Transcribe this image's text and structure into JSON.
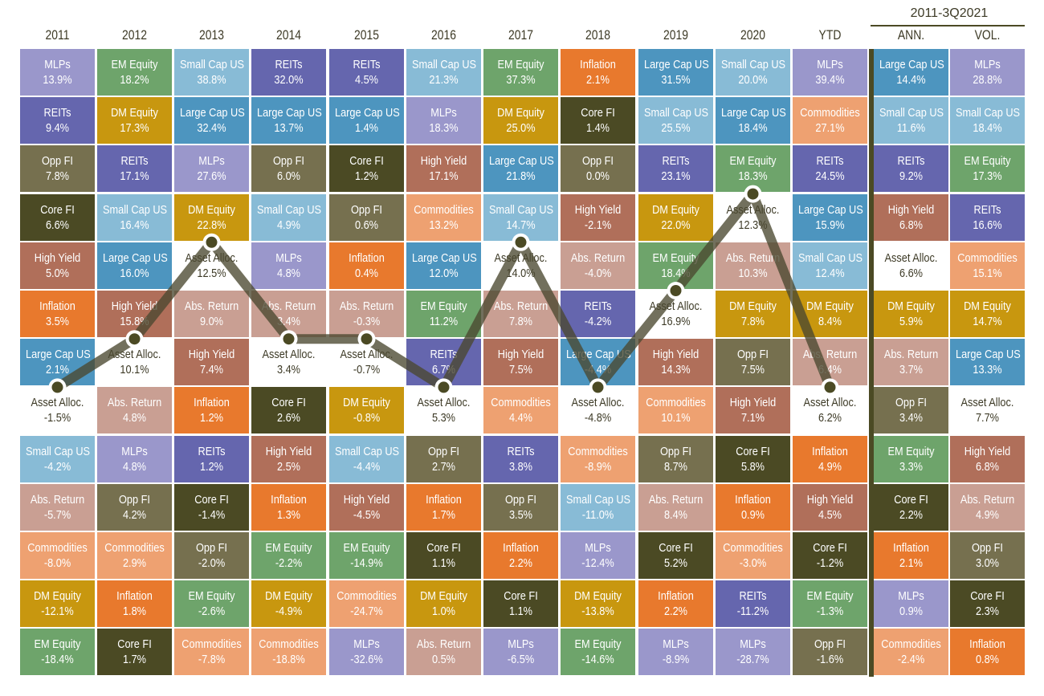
{
  "chart_data": {
    "type": "table",
    "title": "",
    "group_header": "2011-3Q2021",
    "highlight_series": "Asset Alloc.",
    "colors": {
      "MLPs": "#9a97cb",
      "EM Equity": "#6ea46b",
      "Small Cap US": "#88bbd6",
      "REITs": "#6566ae",
      "Inflation": "#e8792d",
      "Large Cap US": "#4d95bf",
      "DM Equity": "#c8970f",
      "Core FI": "#4b4a24",
      "Opp FI": "#76704f",
      "High Yield": "#b06f5a",
      "Commodities": "#eea171",
      "Abs. Return": "#c99f93",
      "Asset Alloc.": "#ffffff",
      "line": "#4a4830"
    },
    "columns": [
      {
        "header": "2011",
        "cells": [
          [
            "MLPs",
            "13.9%"
          ],
          [
            "REITs",
            "9.4%"
          ],
          [
            "Opp FI",
            "7.8%"
          ],
          [
            "Core FI",
            "6.6%"
          ],
          [
            "High Yield",
            "5.0%"
          ],
          [
            "Inflation",
            "3.5%"
          ],
          [
            "Large Cap US",
            "2.1%"
          ],
          [
            "Asset Alloc.",
            "-1.5%"
          ],
          [
            "Small Cap US",
            "-4.2%"
          ],
          [
            "Abs. Return",
            "-5.7%"
          ],
          [
            "Commodities",
            "-8.0%"
          ],
          [
            "DM Equity",
            "-12.1%"
          ],
          [
            "EM Equity",
            "-18.4%"
          ]
        ]
      },
      {
        "header": "2012",
        "cells": [
          [
            "EM Equity",
            "18.2%"
          ],
          [
            "DM Equity",
            "17.3%"
          ],
          [
            "REITs",
            "17.1%"
          ],
          [
            "Small Cap US",
            "16.4%"
          ],
          [
            "Large Cap US",
            "16.0%"
          ],
          [
            "High Yield",
            "15.8%"
          ],
          [
            "Asset Alloc.",
            "10.1%"
          ],
          [
            "Abs. Return",
            "4.8%"
          ],
          [
            "MLPs",
            "4.8%"
          ],
          [
            "Opp FI",
            "4.2%"
          ],
          [
            "Commodities",
            "2.9%"
          ],
          [
            "Inflation",
            "1.8%"
          ],
          [
            "Core FI",
            "1.7%"
          ]
        ]
      },
      {
        "header": "2013",
        "cells": [
          [
            "Small Cap US",
            "38.8%"
          ],
          [
            "Large Cap US",
            "32.4%"
          ],
          [
            "MLPs",
            "27.6%"
          ],
          [
            "DM Equity",
            "22.8%"
          ],
          [
            "Asset Alloc.",
            "12.5%"
          ],
          [
            "Abs. Return",
            "9.0%"
          ],
          [
            "High Yield",
            "7.4%"
          ],
          [
            "Inflation",
            "1.2%"
          ],
          [
            "REITs",
            "1.2%"
          ],
          [
            "Core FI",
            "-1.4%"
          ],
          [
            "Opp FI",
            "-2.0%"
          ],
          [
            "EM Equity",
            "-2.6%"
          ],
          [
            "Commodities",
            "-7.8%"
          ]
        ]
      },
      {
        "header": "2014",
        "cells": [
          [
            "REITs",
            "32.0%"
          ],
          [
            "Large Cap US",
            "13.7%"
          ],
          [
            "Opp FI",
            "6.0%"
          ],
          [
            "Small Cap US",
            "4.9%"
          ],
          [
            "MLPs",
            "4.8%"
          ],
          [
            "Abs. Return",
            "3.4%"
          ],
          [
            "Asset Alloc.",
            "3.4%"
          ],
          [
            "Core FI",
            "2.6%"
          ],
          [
            "High Yield",
            "2.5%"
          ],
          [
            "Inflation",
            "1.3%"
          ],
          [
            "EM Equity",
            "-2.2%"
          ],
          [
            "DM Equity",
            "-4.9%"
          ],
          [
            "Commodities",
            "-18.8%"
          ]
        ]
      },
      {
        "header": "2015",
        "cells": [
          [
            "REITs",
            "4.5%"
          ],
          [
            "Large Cap US",
            "1.4%"
          ],
          [
            "Core FI",
            "1.2%"
          ],
          [
            "Opp FI",
            "0.6%"
          ],
          [
            "Inflation",
            "0.4%"
          ],
          [
            "Abs. Return",
            "-0.3%"
          ],
          [
            "Asset Alloc.",
            "-0.7%"
          ],
          [
            "DM Equity",
            "-0.8%"
          ],
          [
            "Small Cap US",
            "-4.4%"
          ],
          [
            "High Yield",
            "-4.5%"
          ],
          [
            "EM Equity",
            "-14.9%"
          ],
          [
            "Commodities",
            "-24.7%"
          ],
          [
            "MLPs",
            "-32.6%"
          ]
        ]
      },
      {
        "header": "2016",
        "cells": [
          [
            "Small Cap US",
            "21.3%"
          ],
          [
            "MLPs",
            "18.3%"
          ],
          [
            "High Yield",
            "17.1%"
          ],
          [
            "Commodities",
            "13.2%"
          ],
          [
            "Large Cap US",
            "12.0%"
          ],
          [
            "EM Equity",
            "11.2%"
          ],
          [
            "REITs",
            "6.7%"
          ],
          [
            "Asset Alloc.",
            "5.3%"
          ],
          [
            "Opp FI",
            "2.7%"
          ],
          [
            "Inflation",
            "1.7%"
          ],
          [
            "Core FI",
            "1.1%"
          ],
          [
            "DM Equity",
            "1.0%"
          ],
          [
            "Abs. Return",
            "0.5%"
          ]
        ]
      },
      {
        "header": "2017",
        "cells": [
          [
            "EM Equity",
            "37.3%"
          ],
          [
            "DM Equity",
            "25.0%"
          ],
          [
            "Large Cap US",
            "21.8%"
          ],
          [
            "Small Cap US",
            "14.7%"
          ],
          [
            "Asset Alloc.",
            "14.0%"
          ],
          [
            "Abs. Return",
            "7.8%"
          ],
          [
            "High Yield",
            "7.5%"
          ],
          [
            "Commodities",
            "4.4%"
          ],
          [
            "REITs",
            "3.8%"
          ],
          [
            "Opp FI",
            "3.5%"
          ],
          [
            "Inflation",
            "2.2%"
          ],
          [
            "Core FI",
            "1.1%"
          ],
          [
            "MLPs",
            "-6.5%"
          ]
        ]
      },
      {
        "header": "2018",
        "cells": [
          [
            "Inflation",
            "2.1%"
          ],
          [
            "Core FI",
            "1.4%"
          ],
          [
            "Opp FI",
            "0.0%"
          ],
          [
            "High Yield",
            "-2.1%"
          ],
          [
            "Abs. Return",
            "-4.0%"
          ],
          [
            "REITs",
            "-4.2%"
          ],
          [
            "Large Cap US",
            "-4.4%"
          ],
          [
            "Asset Alloc.",
            "-4.8%"
          ],
          [
            "Commodities",
            "-8.9%"
          ],
          [
            "Small Cap US",
            "-11.0%"
          ],
          [
            "MLPs",
            "-12.4%"
          ],
          [
            "DM Equity",
            "-13.8%"
          ],
          [
            "EM Equity",
            "-14.6%"
          ]
        ]
      },
      {
        "header": "2019",
        "cells": [
          [
            "Large Cap US",
            "31.5%"
          ],
          [
            "Small Cap US",
            "25.5%"
          ],
          [
            "REITs",
            "23.1%"
          ],
          [
            "DM Equity",
            "22.0%"
          ],
          [
            "EM Equity",
            "18.4%"
          ],
          [
            "Asset Alloc.",
            "16.9%"
          ],
          [
            "High Yield",
            "14.3%"
          ],
          [
            "Commodities",
            "10.1%"
          ],
          [
            "Opp FI",
            "8.7%"
          ],
          [
            "Abs. Return",
            "8.4%"
          ],
          [
            "Core FI",
            "5.2%"
          ],
          [
            "Inflation",
            "2.2%"
          ],
          [
            "MLPs",
            "-8.9%"
          ]
        ]
      },
      {
        "header": "2020",
        "cells": [
          [
            "Small Cap US",
            "20.0%"
          ],
          [
            "Large Cap US",
            "18.4%"
          ],
          [
            "EM Equity",
            "18.3%"
          ],
          [
            "Asset Alloc.",
            "12.3%"
          ],
          [
            "Abs. Return",
            "10.3%"
          ],
          [
            "DM Equity",
            "7.8%"
          ],
          [
            "Opp FI",
            "7.5%"
          ],
          [
            "High Yield",
            "7.1%"
          ],
          [
            "Core FI",
            "5.8%"
          ],
          [
            "Inflation",
            "0.9%"
          ],
          [
            "Commodities",
            "-3.0%"
          ],
          [
            "REITs",
            "-11.2%"
          ],
          [
            "MLPs",
            "-28.7%"
          ]
        ]
      },
      {
        "header": "YTD",
        "cells": [
          [
            "MLPs",
            "39.4%"
          ],
          [
            "Commodities",
            "27.1%"
          ],
          [
            "REITs",
            "24.5%"
          ],
          [
            "Large Cap US",
            "15.9%"
          ],
          [
            "Small Cap US",
            "12.4%"
          ],
          [
            "DM Equity",
            "8.4%"
          ],
          [
            "Abs. Return",
            "6.4%"
          ],
          [
            "Asset Alloc.",
            "6.2%"
          ],
          [
            "Inflation",
            "4.9%"
          ],
          [
            "High Yield",
            "4.5%"
          ],
          [
            "Core FI",
            "-1.2%"
          ],
          [
            "EM Equity",
            "-1.3%"
          ],
          [
            "Opp FI",
            "-1.6%"
          ]
        ]
      },
      {
        "header": "ANN.",
        "cells": [
          [
            "Large Cap US",
            "14.4%"
          ],
          [
            "Small Cap US",
            "11.6%"
          ],
          [
            "REITs",
            "9.2%"
          ],
          [
            "High Yield",
            "6.8%"
          ],
          [
            "Asset Alloc.",
            "6.6%"
          ],
          [
            "DM Equity",
            "5.9%"
          ],
          [
            "Abs. Return",
            "3.7%"
          ],
          [
            "Opp FI",
            "3.4%"
          ],
          [
            "EM Equity",
            "3.3%"
          ],
          [
            "Core FI",
            "2.2%"
          ],
          [
            "Inflation",
            "2.1%"
          ],
          [
            "MLPs",
            "0.9%"
          ],
          [
            "Commodities",
            "-2.4%"
          ]
        ]
      },
      {
        "header": "VOL.",
        "cells": [
          [
            "MLPs",
            "28.8%"
          ],
          [
            "Small Cap US",
            "18.4%"
          ],
          [
            "EM Equity",
            "17.3%"
          ],
          [
            "REITs",
            "16.6%"
          ],
          [
            "Commodities",
            "15.1%"
          ],
          [
            "DM Equity",
            "14.7%"
          ],
          [
            "Large Cap US",
            "13.3%"
          ],
          [
            "Asset Alloc.",
            "7.7%"
          ],
          [
            "High Yield",
            "6.8%"
          ],
          [
            "Abs. Return",
            "4.9%"
          ],
          [
            "Opp FI",
            "3.0%"
          ],
          [
            "Core FI",
            "2.3%"
          ],
          [
            "Inflation",
            "0.8%"
          ]
        ]
      }
    ]
  }
}
